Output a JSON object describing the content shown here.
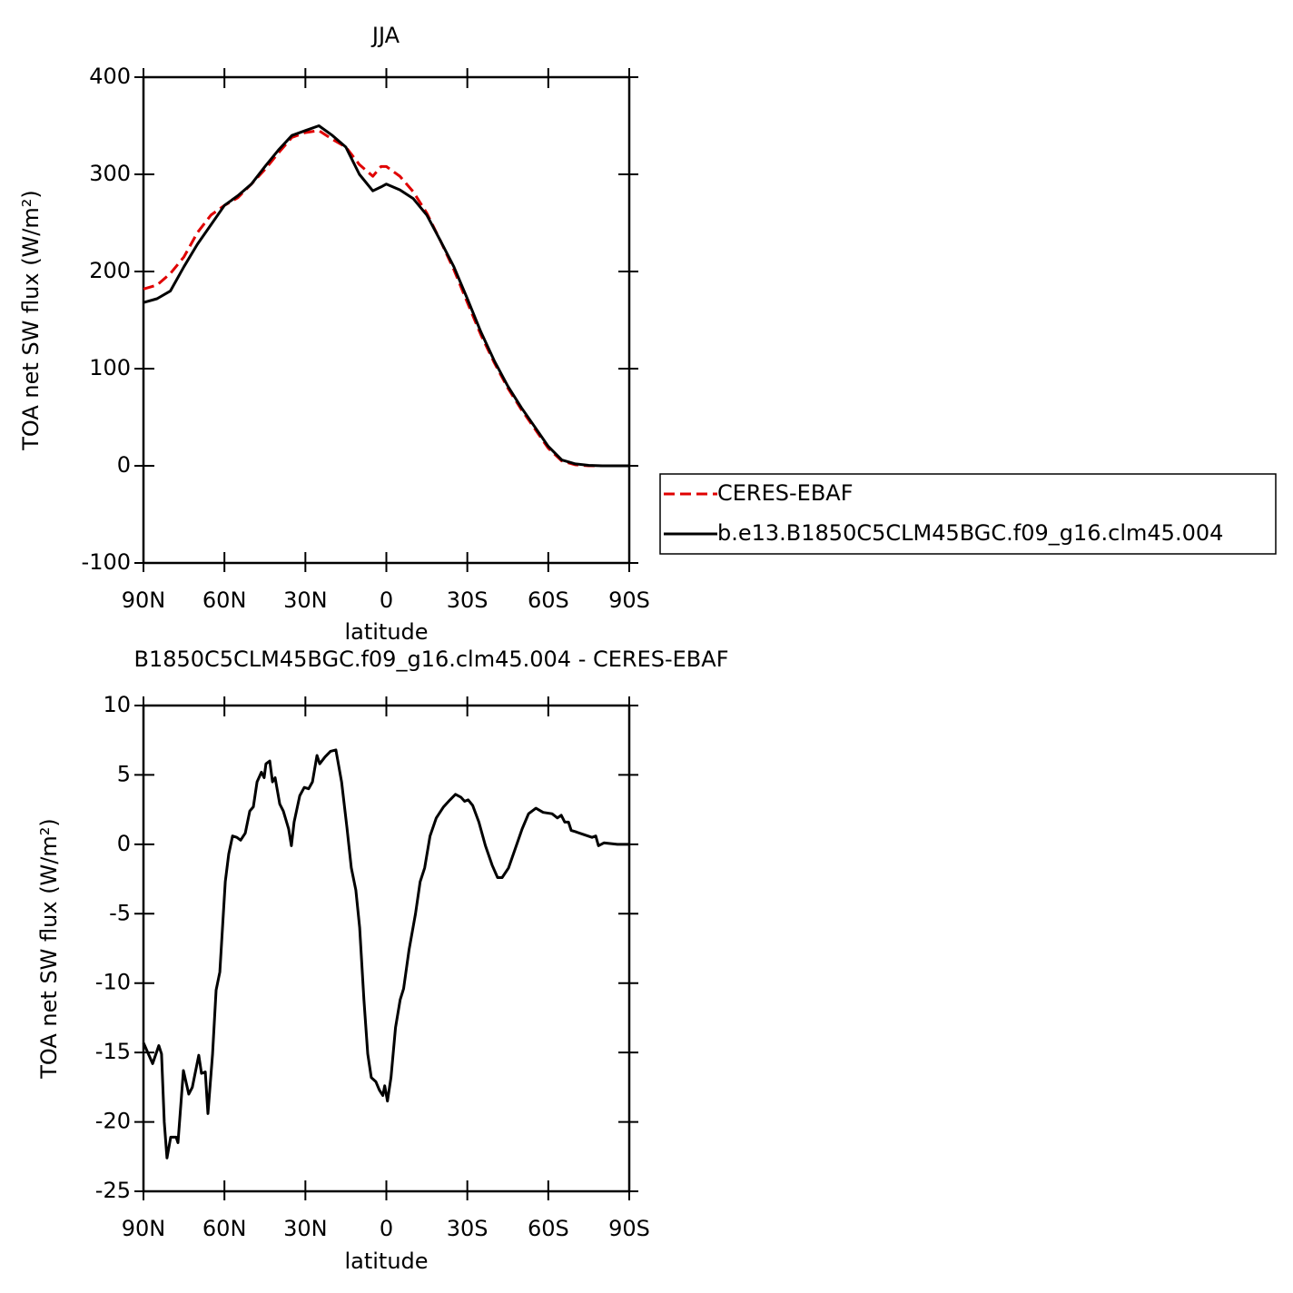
{
  "chart_data": [
    {
      "type": "line",
      "title": "JJA",
      "xlabel": "latitude",
      "ylabel": "TOA net SW flux (W/m²)",
      "x": [
        90,
        85,
        80,
        75,
        70,
        65,
        60,
        55,
        50,
        45,
        40,
        35,
        30,
        25,
        20,
        15,
        10,
        5,
        2,
        0,
        -5,
        -10,
        -15,
        -20,
        -25,
        -30,
        -35,
        -40,
        -45,
        -50,
        -55,
        -60,
        -65,
        -70,
        -75,
        -80,
        -85,
        -90
      ],
      "series": [
        {
          "name": "CERES-EBAF",
          "color": "#e00000",
          "linestyle": "dashed",
          "values": [
            182,
            186,
            198,
            215,
            240,
            258,
            268,
            276,
            290,
            305,
            322,
            338,
            343,
            345,
            336,
            328,
            310,
            298,
            308,
            308,
            298,
            282,
            260,
            232,
            202,
            168,
            135,
            106,
            80,
            58,
            38,
            18,
            5,
            1,
            0,
            0,
            0,
            0
          ]
        },
        {
          "name": "b.e13.B1850C5CLM45BGC.f09_g16.clm45.004",
          "color": "#000000",
          "linestyle": "solid",
          "values": [
            168,
            172,
            180,
            205,
            228,
            248,
            268,
            278,
            290,
            308,
            325,
            340,
            345,
            350,
            340,
            328,
            300,
            283,
            287,
            290,
            284,
            275,
            258,
            232,
            205,
            172,
            138,
            108,
            82,
            60,
            40,
            20,
            6,
            2,
            0.5,
            0,
            0,
            0
          ]
        }
      ],
      "xlim": [
        90,
        -90
      ],
      "xticks": [
        {
          "value": 90,
          "label": "90N"
        },
        {
          "value": 60,
          "label": "60N"
        },
        {
          "value": 30,
          "label": "30N"
        },
        0,
        {
          "value": -30,
          "label": "30S"
        },
        {
          "value": -60,
          "label": "60S"
        },
        {
          "value": -90,
          "label": "90S"
        }
      ],
      "ylim": [
        -100,
        400
      ],
      "yticks": [
        -100,
        0,
        100,
        200,
        300,
        400
      ],
      "grid": false,
      "legend": "right"
    },
    {
      "type": "line",
      "title": "B1850C5CLM45BGC.f09_g16.clm45.004 - CERES-EBAF",
      "xlabel": "latitude",
      "ylabel": "TOA net SW flux (W/m²)",
      "x": [
        90,
        86.6,
        84.3,
        83.3,
        82.3,
        81.3,
        79.9,
        77.9,
        77.2,
        75.2,
        73.2,
        71.9,
        69.5,
        68.5,
        67.1,
        66.1,
        64.4,
        63.1,
        61.7,
        59.7,
        58.4,
        57.0,
        55.4,
        54.0,
        52.3,
        50.6,
        49.3,
        47.9,
        46.3,
        45.3,
        44.6,
        43.2,
        42.2,
        41.2,
        39.5,
        38.2,
        36.2,
        35.2,
        34.2,
        32.1,
        30.4,
        28.8,
        27.4,
        25.7,
        24.7,
        22.7,
        20.7,
        18.7,
        16.6,
        14.6,
        13.0,
        11.3,
        9.9,
        8.3,
        6.9,
        5.6,
        3.9,
        2.6,
        1.3,
        0.6,
        -0.4,
        -1.7,
        -3.4,
        -5.1,
        -6.4,
        -8.4,
        -10.8,
        -12.5,
        -14.2,
        -16.2,
        -18.5,
        -21.2,
        -23.6,
        -25.6,
        -27.6,
        -29.0,
        -30.3,
        -32.0,
        -34.3,
        -36.7,
        -39.2,
        -41.2,
        -42.9,
        -45.3,
        -47.6,
        -50.3,
        -52.7,
        -55.4,
        -58.1,
        -61.4,
        -63.4,
        -64.8,
        -66.1,
        -67.5,
        -68.5,
        -70.2,
        -73.2,
        -76.2,
        -77.6,
        -78.6,
        -80.6,
        -85.6,
        -90
      ],
      "series": [
        {
          "color": "#000000",
          "linestyle": "solid",
          "values": [
            -14.3,
            -15.8,
            -14.5,
            -15.1,
            -20,
            -22.6,
            -21.1,
            -21.1,
            -21.5,
            -16.3,
            -18,
            -17.5,
            -15.2,
            -16.5,
            -16.4,
            -19.4,
            -15.1,
            -10.5,
            -9.2,
            -2.7,
            -0.7,
            0.6,
            0.5,
            0.3,
            0.8,
            2.4,
            2.7,
            4.5,
            5.2,
            4.8,
            5.8,
            6.0,
            4.5,
            4.8,
            2.9,
            2.4,
            1.1,
            -0.1,
            1.6,
            3.5,
            4.1,
            4.0,
            4.5,
            6.4,
            5.8,
            6.3,
            6.7,
            6.8,
            4.5,
            1.2,
            -1.7,
            -3.3,
            -6,
            -11.2,
            -15.1,
            -16.8,
            -17.1,
            -17.7,
            -18.1,
            -17.4,
            -18.5,
            -16.8,
            -13.2,
            -11.2,
            -10.4,
            -7.6,
            -5,
            -2.7,
            -1.7,
            0.6,
            1.9,
            2.7,
            3.2,
            3.6,
            3.4,
            3.1,
            3.2,
            2.8,
            1.6,
            -0.1,
            -1.5,
            -2.4,
            -2.4,
            -1.7,
            -0.4,
            1.1,
            2.2,
            2.6,
            2.3,
            2.2,
            1.9,
            2.1,
            1.6,
            1.6,
            1.0,
            0.9,
            0.7,
            0.5,
            0.6,
            -0.1,
            0.1,
            0,
            0
          ]
        }
      ],
      "xlim": [
        90,
        -90
      ],
      "xticks": [
        {
          "value": 90,
          "label": "90N"
        },
        {
          "value": 60,
          "label": "60N"
        },
        {
          "value": 30,
          "label": "30N"
        },
        0,
        {
          "value": -30,
          "label": "30S"
        },
        {
          "value": -60,
          "label": "60S"
        },
        {
          "value": -90,
          "label": "90S"
        }
      ],
      "ylim": [
        -25,
        10
      ],
      "yticks": [
        -25,
        -20,
        -15,
        -10,
        -5,
        0,
        5,
        10
      ],
      "grid": false
    }
  ]
}
